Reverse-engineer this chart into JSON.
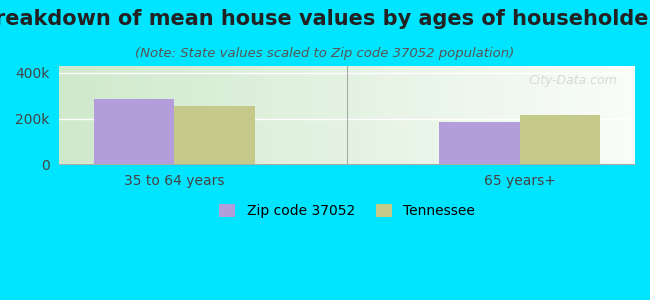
{
  "title": "Breakdown of mean house values by ages of householders",
  "subtitle": "(Note: State values scaled to Zip code 37052 population)",
  "categories": [
    "35 to 64 years",
    "65 years+"
  ],
  "zip_values": [
    285000,
    185000
  ],
  "state_values": [
    255000,
    215000
  ],
  "zip_color": "#b39ddb",
  "state_color": "#c5c98a",
  "zip_label": "Zip code 37052",
  "state_label": "Tennessee",
  "ylim": [
    0,
    430000
  ],
  "yticks": [
    0,
    200000,
    400000
  ],
  "ytick_labels": [
    "0",
    "200k",
    "400k"
  ],
  "bg_outer": "#00e5ff",
  "bg_inner_left": "#e8f5e9",
  "bg_inner_right": "#ffffff",
  "bar_width": 0.35,
  "title_fontsize": 15,
  "subtitle_fontsize": 9.5,
  "tick_fontsize": 10,
  "legend_fontsize": 10,
  "watermark": "City-Data.com"
}
